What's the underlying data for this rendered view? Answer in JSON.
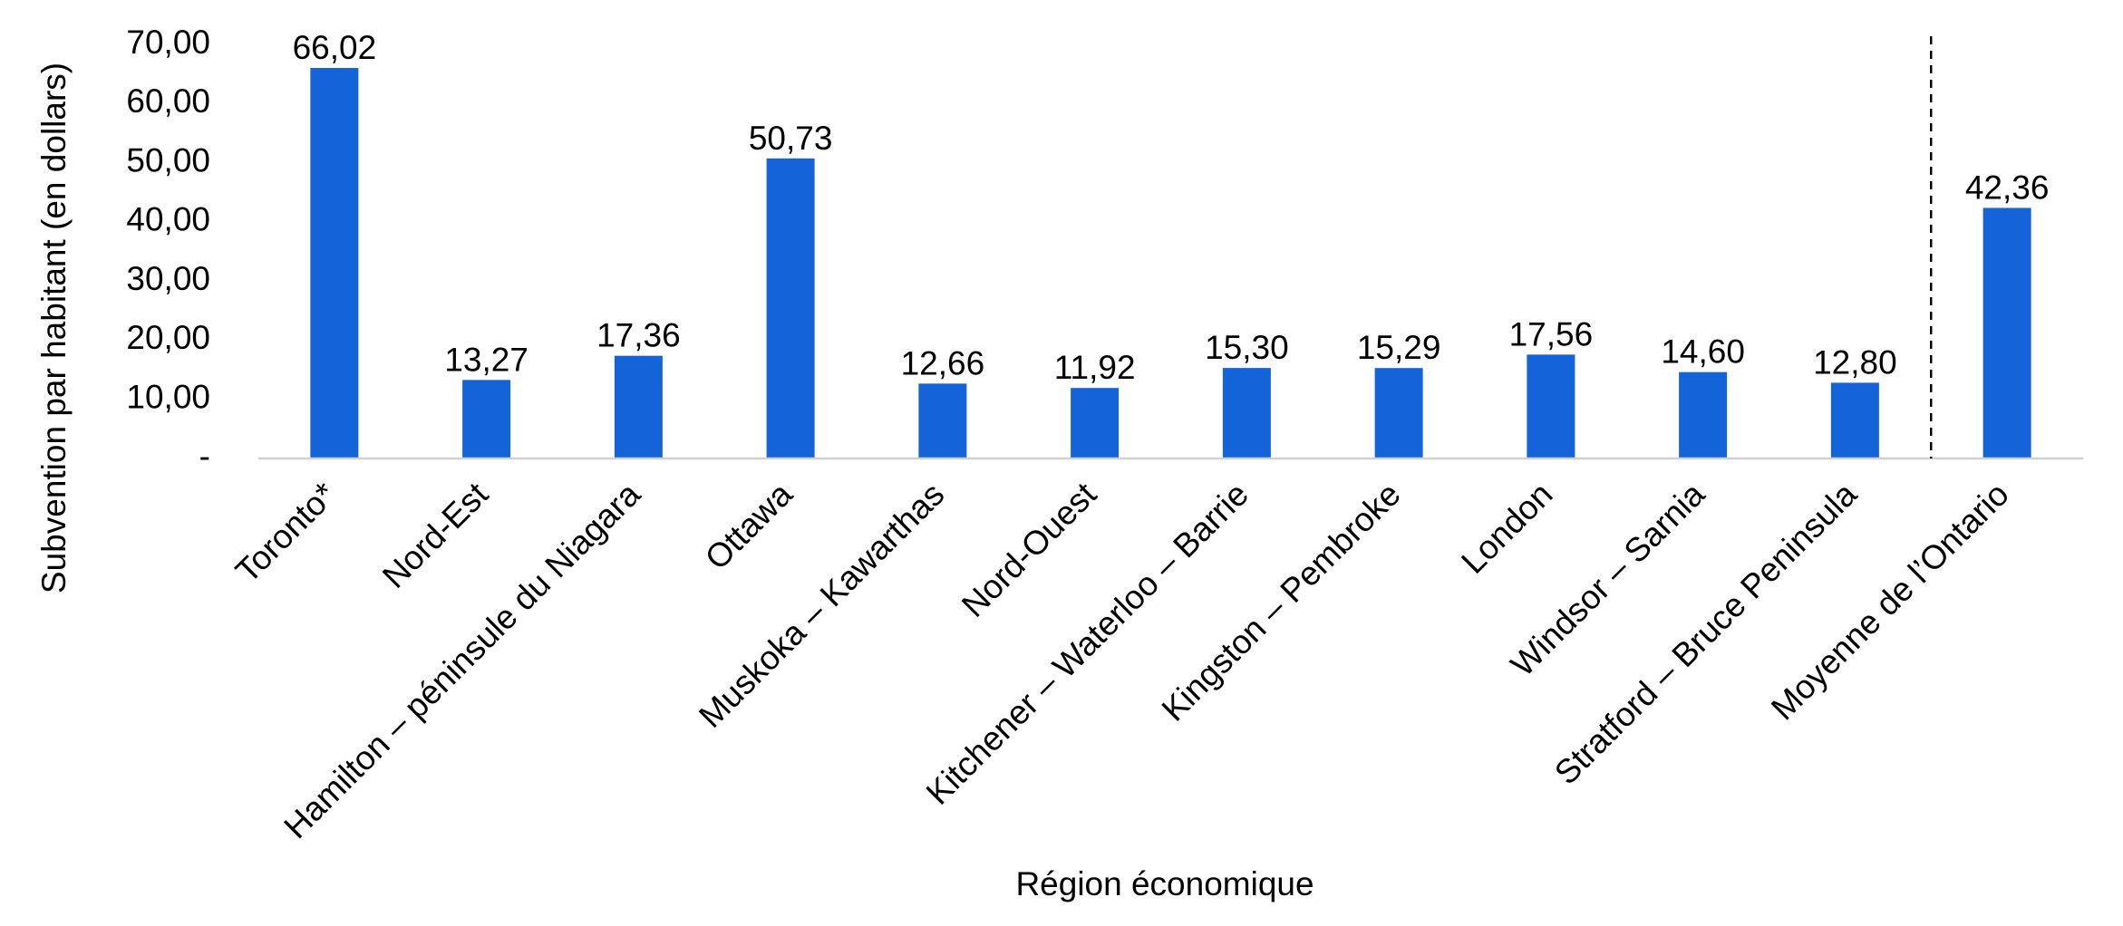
{
  "colors": {
    "bar": "#1463D8",
    "axis": "#D0D0D0",
    "separator": "#000000",
    "text": "#000000"
  },
  "chart_data": {
    "type": "bar",
    "categories": [
      "Toronto*",
      "Nord-Est",
      "Hamilton – péninsule du Niagara",
      "Ottawa",
      "Muskoka – Kawarthas",
      "Nord-Ouest",
      "Kitchener – Waterloo – Barrie",
      "Kingston – Pembroke",
      "London",
      "Windsor – Sarnia",
      "Stratford – Bruce Peninsula",
      "Moyenne de l’Ontario"
    ],
    "values": [
      66.02,
      13.27,
      17.36,
      50.73,
      12.66,
      11.92,
      15.3,
      15.29,
      17.56,
      14.6,
      12.8,
      42.36
    ],
    "data_labels": [
      "66,02",
      "13,27",
      "17,36",
      "50,73",
      "12,66",
      "11,92",
      "15,30",
      "15,29",
      "17,56",
      "14,60",
      "12,80",
      "42,36"
    ],
    "ylim": [
      0,
      70
    ],
    "yticks": [
      0,
      10,
      20,
      30,
      40,
      50,
      60,
      70
    ],
    "ytick_labels": [
      "-",
      "10,00",
      "20,00",
      "30,00",
      "40,00",
      "50,00",
      "60,00",
      "70,00"
    ],
    "xlabel": "Région économique",
    "ylabel": "Subvention par habitant (en dollars)",
    "grid": false,
    "legend": "none",
    "separator_before_last": true
  }
}
